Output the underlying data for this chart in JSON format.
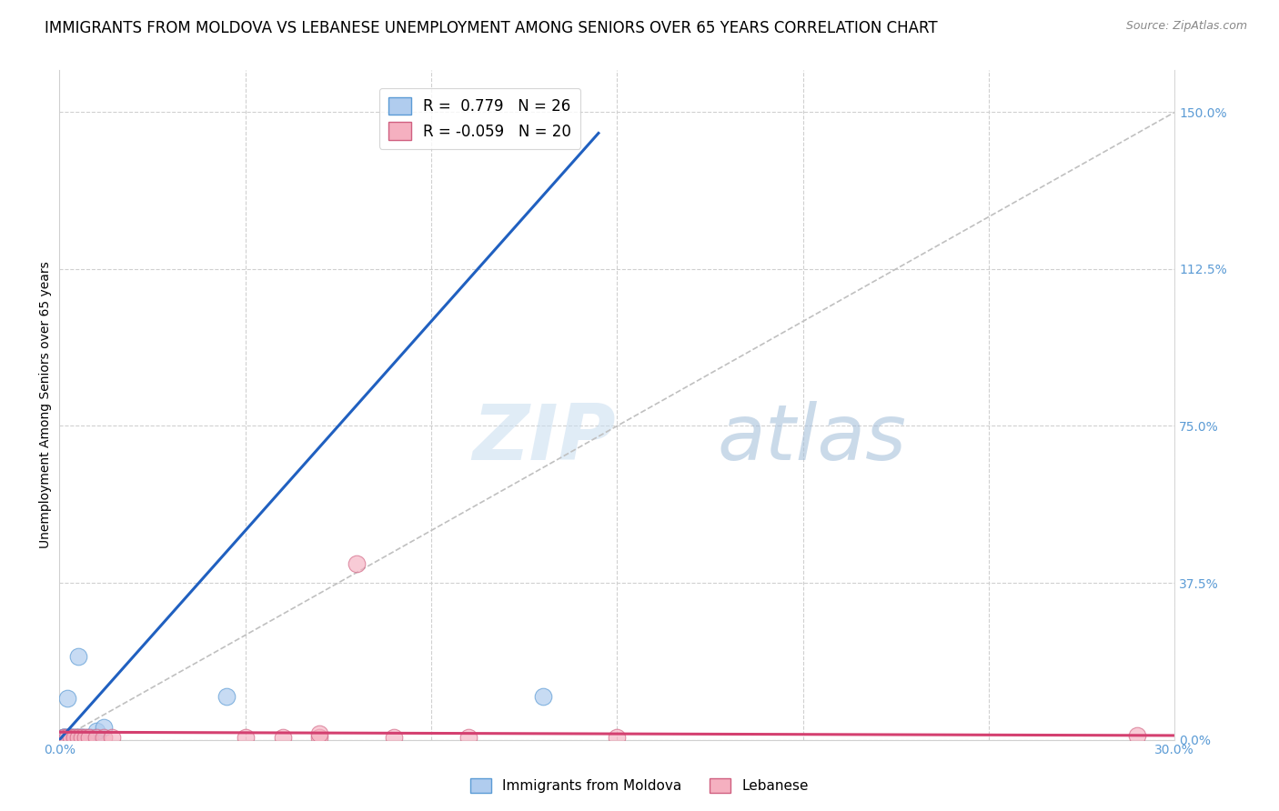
{
  "title": "IMMIGRANTS FROM MOLDOVA VS LEBANESE UNEMPLOYMENT AMONG SENIORS OVER 65 YEARS CORRELATION CHART",
  "source": "Source: ZipAtlas.com",
  "ylabel": "Unemployment Among Seniors over 65 years",
  "legend_entries": [
    {
      "label": "R =  0.779   N = 26",
      "color": "#a8c8e8"
    },
    {
      "label": "R = -0.059   N = 20",
      "color": "#f4a0b4"
    }
  ],
  "watermark_text": "ZIPatlas",
  "xlim": [
    0.0,
    0.3
  ],
  "ylim": [
    0.0,
    1.6
  ],
  "xticks": [
    0.0,
    0.05,
    0.1,
    0.15,
    0.2,
    0.25,
    0.3
  ],
  "xticklabels": [
    "0.0%",
    "",
    "",
    "",
    "",
    "",
    "30.0%"
  ],
  "yticks_right": [
    0.0,
    0.375,
    0.75,
    1.125,
    1.5
  ],
  "ytick_right_labels": [
    "0.0%",
    "37.5%",
    "75.0%",
    "112.5%",
    "150.0%"
  ],
  "moldova_points": [
    [
      0.001,
      0.005
    ],
    [
      0.001,
      0.005
    ],
    [
      0.001,
      0.005
    ],
    [
      0.001,
      0.005
    ],
    [
      0.002,
      0.005
    ],
    [
      0.002,
      0.005
    ],
    [
      0.002,
      0.005
    ],
    [
      0.003,
      0.005
    ],
    [
      0.003,
      0.005
    ],
    [
      0.003,
      0.005
    ],
    [
      0.004,
      0.005
    ],
    [
      0.004,
      0.005
    ],
    [
      0.005,
      0.005
    ],
    [
      0.005,
      0.005
    ],
    [
      0.006,
      0.005
    ],
    [
      0.006,
      0.005
    ],
    [
      0.007,
      0.005
    ],
    [
      0.008,
      0.005
    ],
    [
      0.009,
      0.005
    ],
    [
      0.01,
      0.005
    ],
    [
      0.01,
      0.02
    ],
    [
      0.012,
      0.03
    ],
    [
      0.002,
      0.1
    ],
    [
      0.005,
      0.2
    ],
    [
      0.13,
      0.1025
    ],
    [
      0.045,
      0.1025
    ]
  ],
  "lebanese_points": [
    [
      0.001,
      0.005
    ],
    [
      0.002,
      0.005
    ],
    [
      0.003,
      0.005
    ],
    [
      0.004,
      0.005
    ],
    [
      0.005,
      0.005
    ],
    [
      0.006,
      0.005
    ],
    [
      0.007,
      0.005
    ],
    [
      0.008,
      0.005
    ],
    [
      0.01,
      0.005
    ],
    [
      0.012,
      0.005
    ],
    [
      0.014,
      0.005
    ],
    [
      0.05,
      0.005
    ],
    [
      0.06,
      0.005
    ],
    [
      0.07,
      0.005
    ],
    [
      0.09,
      0.005
    ],
    [
      0.11,
      0.005
    ],
    [
      0.15,
      0.005
    ],
    [
      0.07,
      0.015
    ],
    [
      0.08,
      0.42
    ],
    [
      0.29,
      0.01
    ]
  ],
  "moldova_line": {
    "x0": 0.0,
    "y0": 0.0,
    "x1": 0.145,
    "y1": 1.45
  },
  "lebanese_line": {
    "x0": 0.0,
    "y0": 0.018,
    "x1": 0.3,
    "y1": 0.01
  },
  "diag_line": {
    "x0": 0.0,
    "y0": 0.0,
    "x1": 0.3,
    "y1": 1.5
  },
  "moldova_line_color": "#2060c0",
  "lebanese_line_color": "#d44070",
  "diag_line_color": "#c0c0c0",
  "grid_color": "#d0d0d0",
  "title_fontsize": 12,
  "axis_label_fontsize": 10,
  "tick_fontsize": 10,
  "right_tick_color": "#5b9bd5",
  "moldova_face": "#b0ccee",
  "moldova_edge": "#5b9bd5",
  "lebanese_face": "#f5b0c0",
  "lebanese_edge": "#d06080"
}
